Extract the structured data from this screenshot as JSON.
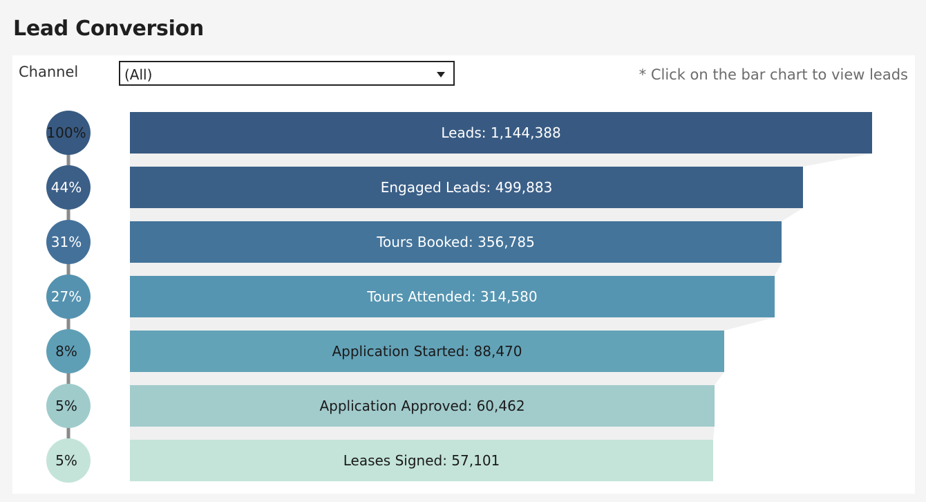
{
  "page": {
    "title": "Lead Conversion",
    "hint": "* Click on the bar chart to view leads"
  },
  "filter": {
    "label": "Channel",
    "value": "(All)",
    "icon": "chevron-down-icon"
  },
  "chart_data": {
    "type": "bar",
    "orientation": "horizontal",
    "categories": [
      "Leads",
      "Engaged Leads",
      "Tours Booked",
      "Tours Attended",
      "Application Started",
      "Application Approved",
      "Leases Signed"
    ],
    "values": [
      1144388,
      499883,
      356785,
      314580,
      88470,
      60462,
      57101
    ],
    "bar_labels": [
      "Leads: 1,144,388",
      "Engaged Leads: 499,883",
      "Tours Booked: 356,785",
      "Tours Attended: 314,580",
      "Application Started: 88,470",
      "Application Approved: 60,462",
      "Leases Signed: 57,101"
    ],
    "conversion_labels": [
      "100%",
      "44%",
      "31%",
      "27%",
      "8%",
      "5%",
      "5%"
    ],
    "colors": [
      "#385a82",
      "#3b6088",
      "#44749a",
      "#5595b1",
      "#63a3b8",
      "#a2cbcc",
      "#c4e4d9"
    ],
    "circle_colors": [
      "#385a82",
      "#3b5f87",
      "#44719a",
      "#5592b0",
      "#5f9fb6",
      "#9fcbcb",
      "#c4e4d9"
    ],
    "label_colors": [
      "#ffffff",
      "#ffffff",
      "#ffffff",
      "#ffffff",
      "#1a1a1a",
      "#1a1a1a",
      "#1a1a1a"
    ],
    "circle_text_colors": [
      "#1a1a1a",
      "#ffffff",
      "#ffffff",
      "#ffffff",
      "#1a1a1a",
      "#1a1a1a",
      "#1a1a1a"
    ],
    "connector_color": "#8a8a8a",
    "funnel_shadow_color": "#f0f0f0",
    "grid": false,
    "legend": "none"
  }
}
